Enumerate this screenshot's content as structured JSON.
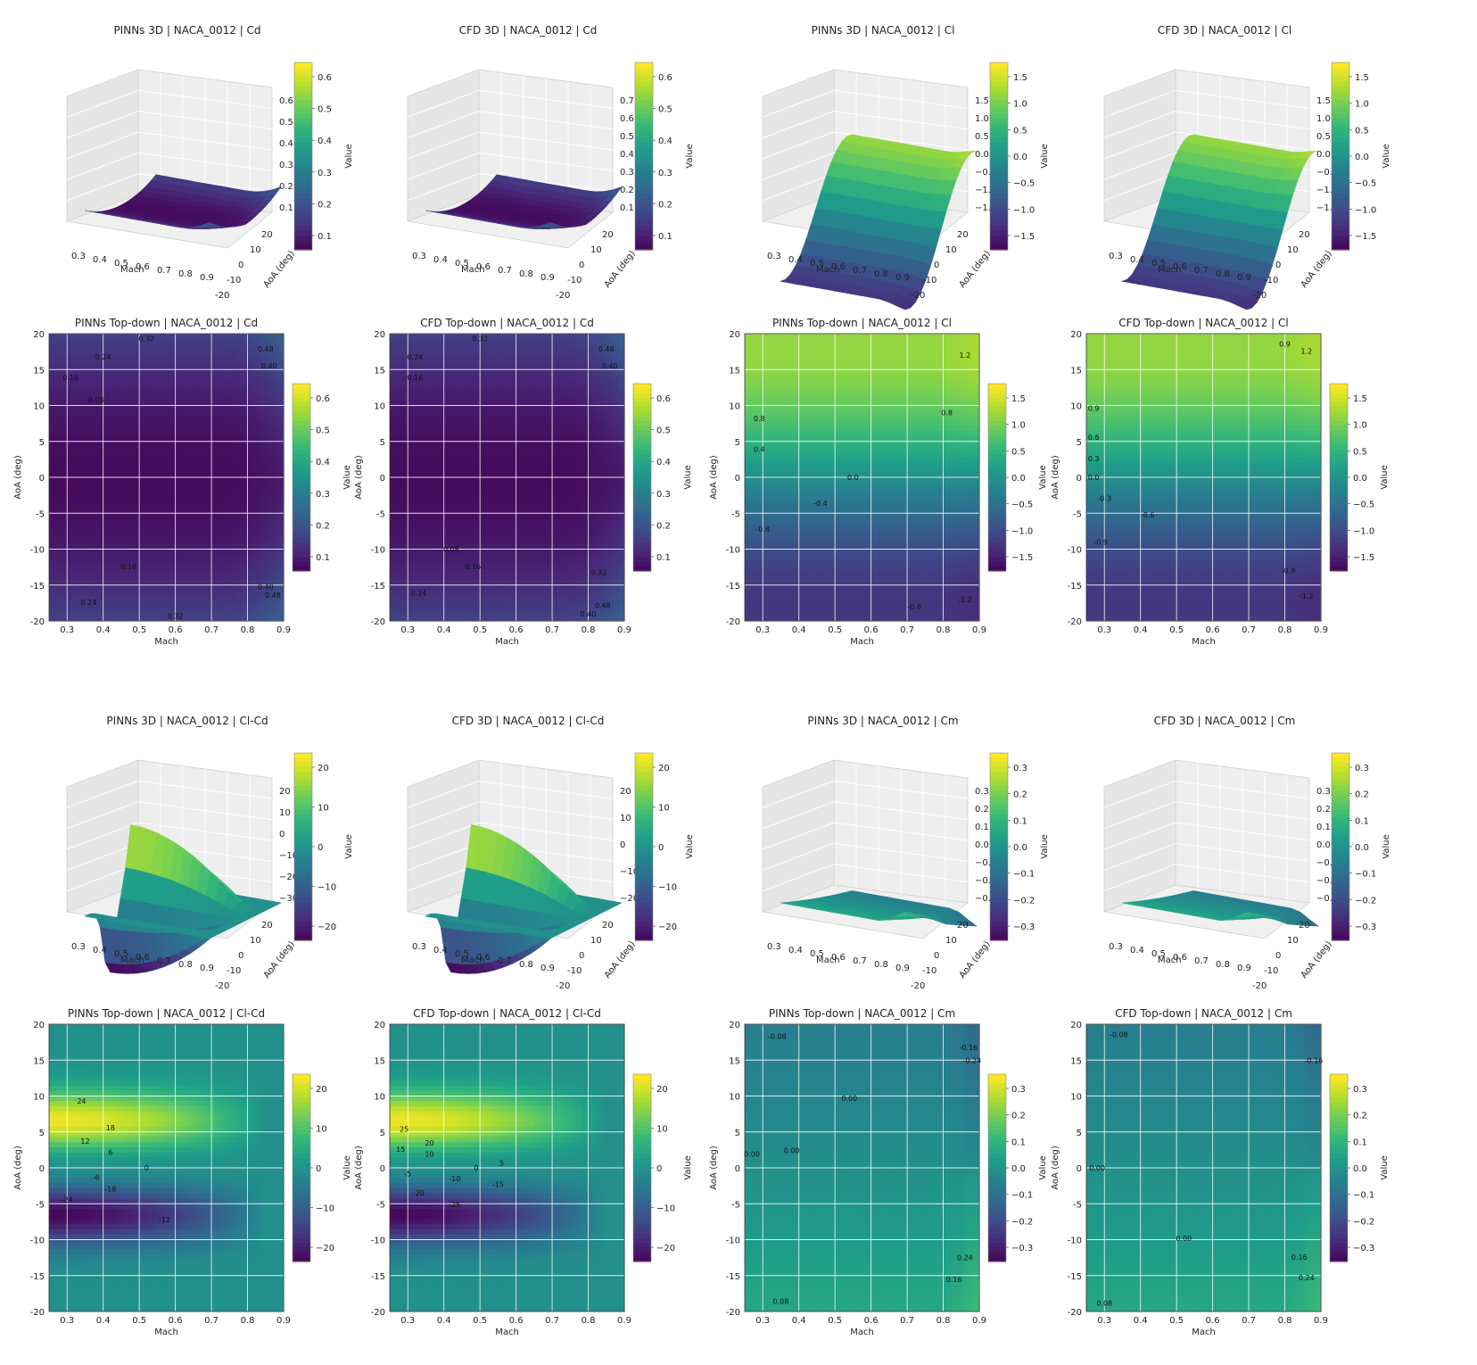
{
  "figure": {
    "axis_label_mach": "Mach",
    "axis_label_aoa": "AoA (deg)",
    "axis_label_aoa_3d": "AoA (deg)",
    "colorbar_label": "Value",
    "x_ticks": [
      "0.3",
      "0.4",
      "0.5",
      "0.6",
      "0.7",
      "0.8",
      "0.9"
    ],
    "y_ticks": [
      "20",
      "15",
      "10",
      "5",
      "0",
      "-5",
      "-10",
      "-15",
      "-20"
    ],
    "aoa_ticks_3d": [
      "20",
      "10",
      "0",
      "-10",
      "-20"
    ]
  },
  "chart_data": [
    {
      "id": "pinns-3d-cd",
      "type": "surface3d",
      "title": "PINNs 3D | NACA_0012 | Cd",
      "colorscale": "viridis",
      "x": {
        "label": "Mach",
        "range": [
          0.25,
          0.9
        ]
      },
      "y": {
        "label": "AoA (deg)",
        "range": [
          -20,
          20
        ]
      },
      "z_ticks": [
        "0.6",
        "0.5",
        "0.4",
        "0.3",
        "0.2",
        "0.1"
      ],
      "colorbar_ticks": [
        "0.6",
        "0.5",
        "0.4",
        "0.3",
        "0.2",
        "0.1"
      ]
    },
    {
      "id": "cfd-3d-cd",
      "type": "surface3d",
      "title": "CFD 3D | NACA_0012 | Cd",
      "colorscale": "viridis",
      "x": {
        "label": "Mach",
        "range": [
          0.25,
          0.9
        ]
      },
      "y": {
        "label": "AoA (deg)",
        "range": [
          -20,
          20
        ]
      },
      "z_ticks": [
        "0.7",
        "0.6",
        "0.5",
        "0.4",
        "0.3",
        "0.2",
        "0.1"
      ],
      "colorbar_ticks": [
        "0.6",
        "0.5",
        "0.4",
        "0.3",
        "0.2",
        "0.1"
      ]
    },
    {
      "id": "pinns-3d-cl",
      "type": "surface3d",
      "title": "PINNs 3D | NACA_0012 | Cl",
      "colorscale": "viridis",
      "x": {
        "label": "Mach",
        "range": [
          0.25,
          0.9
        ]
      },
      "y": {
        "label": "AoA (deg)",
        "range": [
          -20,
          20
        ]
      },
      "z_ticks": [
        "1.5",
        "1.0",
        "0.5",
        "0.0",
        "−0.5",
        "−1.0",
        "−1.5"
      ],
      "colorbar_ticks": [
        "1.5",
        "1.0",
        "0.5",
        "0.0",
        "−0.5",
        "−1.0",
        "−1.5"
      ]
    },
    {
      "id": "cfd-3d-cl",
      "type": "surface3d",
      "title": "CFD 3D | NACA_0012 | Cl",
      "colorscale": "viridis",
      "x": {
        "label": "Mach",
        "range": [
          0.25,
          0.9
        ]
      },
      "y": {
        "label": "AoA (deg)",
        "range": [
          -20,
          20
        ]
      },
      "z_ticks": [
        "1.5",
        "1.0",
        "0.5",
        "0.0",
        "−0.5",
        "−1.0",
        "−1.5"
      ],
      "colorbar_ticks": [
        "1.5",
        "1.0",
        "0.5",
        "0.0",
        "−0.5",
        "−1.0",
        "−1.5"
      ]
    },
    {
      "id": "pinns-top-cd",
      "type": "heatmap",
      "title": "PINNs Top-down | NACA_0012 | Cd",
      "field": "cd",
      "colorscale": "viridis",
      "vmin": 0.0,
      "vmax": 0.68,
      "x": {
        "label": "Mach",
        "range": [
          0.25,
          0.9
        ]
      },
      "y": {
        "label": "AoA (deg)",
        "range": [
          -20,
          20
        ]
      },
      "colorbar_ticks": [
        "0.6",
        "0.5",
        "0.4",
        "0.3",
        "0.2",
        "0.1"
      ],
      "contour_labels": [
        {
          "text": "0.32",
          "x": 0.52,
          "y": 19.3
        },
        {
          "text": "0.24",
          "x": 0.4,
          "y": 16.8
        },
        {
          "text": "0.16",
          "x": 0.31,
          "y": 13.9
        },
        {
          "text": "0.08",
          "x": 0.38,
          "y": 10.8
        },
        {
          "text": "0.48",
          "x": 0.85,
          "y": 17.9
        },
        {
          "text": "0.40",
          "x": 0.86,
          "y": 15.5
        },
        {
          "text": "0.16",
          "x": 0.47,
          "y": -12.4
        },
        {
          "text": "0.24",
          "x": 0.36,
          "y": -17.4
        },
        {
          "text": "0.32",
          "x": 0.6,
          "y": -19.3
        },
        {
          "text": "0.40",
          "x": 0.85,
          "y": -15.2
        },
        {
          "text": "0.48",
          "x": 0.87,
          "y": -16.4
        }
      ]
    },
    {
      "id": "cfd-top-cd",
      "type": "heatmap",
      "title": "CFD Top-down | NACA_0012 | Cd",
      "field": "cd",
      "colorscale": "viridis",
      "vmin": 0.0,
      "vmax": 0.68,
      "x": {
        "label": "Mach",
        "range": [
          0.25,
          0.9
        ]
      },
      "y": {
        "label": "AoA (deg)",
        "range": [
          -20,
          20
        ]
      },
      "colorbar_ticks": [
        "0.6",
        "0.5",
        "0.4",
        "0.3",
        "0.2",
        "0.1"
      ],
      "contour_labels": [
        {
          "text": "0.32",
          "x": 0.5,
          "y": 19.3
        },
        {
          "text": "0.24",
          "x": 0.32,
          "y": 16.8
        },
        {
          "text": "0.16",
          "x": 0.32,
          "y": 13.9
        },
        {
          "text": "0.48",
          "x": 0.85,
          "y": 17.9
        },
        {
          "text": "0.40",
          "x": 0.86,
          "y": 15.5
        },
        {
          "text": "0.08",
          "x": 0.42,
          "y": -10.0
        },
        {
          "text": "0.16",
          "x": 0.48,
          "y": -12.4
        },
        {
          "text": "0.24",
          "x": 0.33,
          "y": -16.1
        },
        {
          "text": "0.32",
          "x": 0.83,
          "y": -13.2
        },
        {
          "text": "0.40",
          "x": 0.8,
          "y": -19.0
        },
        {
          "text": "0.48",
          "x": 0.84,
          "y": -17.8
        }
      ]
    },
    {
      "id": "pinns-top-cl",
      "type": "heatmap",
      "title": "PINNs Top-down | NACA_0012 | Cl",
      "field": "cl",
      "colorscale": "viridis",
      "vmin": -1.7,
      "vmax": 1.7,
      "x": {
        "label": "Mach",
        "range": [
          0.25,
          0.9
        ]
      },
      "y": {
        "label": "AoA (deg)",
        "range": [
          -20,
          20
        ]
      },
      "colorbar_ticks": [
        "1.5",
        "1.0",
        "0.5",
        "0.0",
        "−0.5",
        "−1.0",
        "−1.5"
      ],
      "contour_labels": [
        {
          "text": "0.8",
          "x": 0.29,
          "y": 8.2
        },
        {
          "text": "0.4",
          "x": 0.29,
          "y": 3.9
        },
        {
          "text": "0.0",
          "x": 0.55,
          "y": 0.0
        },
        {
          "text": "-0.4",
          "x": 0.46,
          "y": -3.6
        },
        {
          "text": "-0.8",
          "x": 0.3,
          "y": -7.2
        },
        {
          "text": "0.8",
          "x": 0.81,
          "y": 9.0
        },
        {
          "text": "1.2",
          "x": 0.86,
          "y": 17.0
        },
        {
          "text": "-0.8",
          "x": 0.72,
          "y": -18.0
        },
        {
          "text": "-1.2",
          "x": 0.86,
          "y": -17.0
        }
      ]
    },
    {
      "id": "cfd-top-cl",
      "type": "heatmap",
      "title": "CFD Top-down | NACA_0012 | Cl",
      "field": "cl",
      "colorscale": "viridis",
      "vmin": -1.7,
      "vmax": 1.7,
      "x": {
        "label": "Mach",
        "range": [
          0.25,
          0.9
        ]
      },
      "y": {
        "label": "AoA (deg)",
        "range": [
          -20,
          20
        ]
      },
      "colorbar_ticks": [
        "1.5",
        "1.0",
        "0.5",
        "0.0",
        "−0.5",
        "−1.0",
        "−1.5"
      ],
      "contour_labels": [
        {
          "text": "0.9",
          "x": 0.27,
          "y": 9.6
        },
        {
          "text": "0.6",
          "x": 0.27,
          "y": 5.6
        },
        {
          "text": "0.3",
          "x": 0.27,
          "y": 2.6
        },
        {
          "text": "0.0",
          "x": 0.27,
          "y": 0.0
        },
        {
          "text": "-0.3",
          "x": 0.3,
          "y": -2.9
        },
        {
          "text": "-0.6",
          "x": 0.42,
          "y": -5.2
        },
        {
          "text": "-0.9",
          "x": 0.29,
          "y": -9.0
        },
        {
          "text": "0.9",
          "x": 0.8,
          "y": 18.6
        },
        {
          "text": "1.2",
          "x": 0.86,
          "y": 17.6
        },
        {
          "text": "-0.9",
          "x": 0.81,
          "y": -13.0
        },
        {
          "text": "-1.2",
          "x": 0.86,
          "y": -16.5
        }
      ]
    },
    {
      "id": "pinns-3d-clcd",
      "type": "surface3d",
      "title": "PINNs 3D | NACA_0012 | Cl-Cd",
      "colorscale": "viridis",
      "x": {
        "label": "Mach",
        "range": [
          0.25,
          0.9
        ]
      },
      "y": {
        "label": "AoA (deg)",
        "range": [
          -20,
          20
        ]
      },
      "z_ticks": [
        "20",
        "10",
        "0",
        "−10",
        "−20",
        "−30"
      ],
      "colorbar_ticks": [
        "20",
        "10",
        "0",
        "−10",
        "−20"
      ]
    },
    {
      "id": "cfd-3d-clcd",
      "type": "surface3d",
      "title": "CFD 3D | NACA_0012 | Cl-Cd",
      "colorscale": "viridis",
      "x": {
        "label": "Mach",
        "range": [
          0.25,
          0.9
        ]
      },
      "y": {
        "label": "AoA (deg)",
        "range": [
          -20,
          20
        ]
      },
      "z_ticks": [
        "20",
        "10",
        "0",
        "−10",
        "−20"
      ],
      "colorbar_ticks": [
        "20",
        "10",
        "0",
        "−10",
        "−20"
      ]
    },
    {
      "id": "pinns-3d-cm",
      "type": "surface3d",
      "title": "PINNs 3D | NACA_0012 | Cm",
      "colorscale": "viridis",
      "x": {
        "label": "Mach",
        "range": [
          0.25,
          0.9
        ]
      },
      "y": {
        "label": "AoA (deg)",
        "range": [
          -20,
          20
        ]
      },
      "z_ticks": [
        "0.3",
        "0.2",
        "0.1",
        "0.0",
        "−0.1",
        "−0.2",
        "−0.3"
      ],
      "colorbar_ticks": [
        "0.3",
        "0.2",
        "0.1",
        "0.0",
        "−0.1",
        "−0.2",
        "−0.3"
      ]
    },
    {
      "id": "cfd-3d-cm",
      "type": "surface3d",
      "title": "CFD 3D | NACA_0012 | Cm",
      "colorscale": "viridis",
      "x": {
        "label": "Mach",
        "range": [
          0.25,
          0.9
        ]
      },
      "y": {
        "label": "AoA (deg)",
        "range": [
          -20,
          20
        ]
      },
      "z_ticks": [
        "0.3",
        "0.2",
        "0.1",
        "0.0",
        "−0.1",
        "−0.2",
        "−0.3"
      ],
      "colorbar_ticks": [
        "0.3",
        "0.2",
        "0.1",
        "0.0",
        "−0.1",
        "−0.2",
        "−0.3"
      ]
    },
    {
      "id": "pinns-top-clcd",
      "type": "heatmap",
      "title": "PINNs Top-down | NACA_0012 | Cl-Cd",
      "field": "clcd",
      "colorscale": "viridis",
      "vmin": -28,
      "vmax": 28,
      "x": {
        "label": "Mach",
        "range": [
          0.25,
          0.9
        ]
      },
      "y": {
        "label": "AoA (deg)",
        "range": [
          -20,
          20
        ]
      },
      "colorbar_ticks": [
        "20",
        "10",
        "0",
        "−10",
        "−20"
      ],
      "contour_labels": [
        {
          "text": "24",
          "x": 0.34,
          "y": 9.3
        },
        {
          "text": "18",
          "x": 0.42,
          "y": 5.6
        },
        {
          "text": "12",
          "x": 0.35,
          "y": 3.7
        },
        {
          "text": "6",
          "x": 0.42,
          "y": 2.2
        },
        {
          "text": "0",
          "x": 0.52,
          "y": 0.0
        },
        {
          "text": "-6",
          "x": 0.38,
          "y": -1.3
        },
        {
          "text": "-18",
          "x": 0.42,
          "y": -2.9
        },
        {
          "text": "-24",
          "x": 0.3,
          "y": -4.4
        },
        {
          "text": "-12",
          "x": 0.57,
          "y": -7.2
        }
      ]
    },
    {
      "id": "cfd-top-clcd",
      "type": "heatmap",
      "title": "CFD Top-down | NACA_0012 | Cl-Cd",
      "field": "clcd",
      "colorscale": "viridis",
      "vmin": -28,
      "vmax": 28,
      "x": {
        "label": "Mach",
        "range": [
          0.25,
          0.9
        ]
      },
      "y": {
        "label": "AoA (deg)",
        "range": [
          -20,
          20
        ]
      },
      "colorbar_ticks": [
        "20",
        "10",
        "0",
        "−10",
        "−20"
      ],
      "contour_labels": [
        {
          "text": "25",
          "x": 0.29,
          "y": 5.4
        },
        {
          "text": "20",
          "x": 0.36,
          "y": 3.5
        },
        {
          "text": "15",
          "x": 0.28,
          "y": 2.6
        },
        {
          "text": "10",
          "x": 0.36,
          "y": 1.9
        },
        {
          "text": "5",
          "x": 0.56,
          "y": 0.7
        },
        {
          "text": "0",
          "x": 0.49,
          "y": 0.0
        },
        {
          "text": "-5",
          "x": 0.3,
          "y": -0.8
        },
        {
          "text": "-10",
          "x": 0.43,
          "y": -1.5
        },
        {
          "text": "-15",
          "x": 0.55,
          "y": -2.3
        },
        {
          "text": "-20",
          "x": 0.33,
          "y": -3.5
        },
        {
          "text": "-25",
          "x": 0.43,
          "y": -5.1
        }
      ]
    },
    {
      "id": "pinns-top-cm",
      "type": "heatmap",
      "title": "PINNs Top-down | NACA_0012 | Cm",
      "field": "cm",
      "colorscale": "viridis",
      "vmin": -0.36,
      "vmax": 0.36,
      "x": {
        "label": "Mach",
        "range": [
          0.25,
          0.9
        ]
      },
      "y": {
        "label": "AoA (deg)",
        "range": [
          -20,
          20
        ]
      },
      "colorbar_ticks": [
        "0.3",
        "0.2",
        "0.1",
        "0.0",
        "−0.1",
        "−0.2",
        "−0.3"
      ],
      "contour_labels": [
        {
          "text": "-0.08",
          "x": 0.34,
          "y": 18.3
        },
        {
          "text": "0.00",
          "x": 0.54,
          "y": 9.7
        },
        {
          "text": "0.00",
          "x": 0.27,
          "y": 1.9
        },
        {
          "text": "0.00",
          "x": 0.38,
          "y": 2.4
        },
        {
          "text": "-0.16",
          "x": 0.87,
          "y": 16.8
        },
        {
          "text": "-0.24",
          "x": 0.88,
          "y": 15.0
        },
        {
          "text": "0.08",
          "x": 0.35,
          "y": -18.6
        },
        {
          "text": "0.16",
          "x": 0.83,
          "y": -15.5
        },
        {
          "text": "0.24",
          "x": 0.86,
          "y": -12.5
        }
      ]
    },
    {
      "id": "cfd-top-cm",
      "type": "heatmap",
      "title": "CFD Top-down | NACA_0012 | Cm",
      "field": "cm",
      "colorscale": "viridis",
      "vmin": -0.36,
      "vmax": 0.36,
      "x": {
        "label": "Mach",
        "range": [
          0.25,
          0.9
        ]
      },
      "y": {
        "label": "AoA (deg)",
        "range": [
          -20,
          20
        ]
      },
      "colorbar_ticks": [
        "0.3",
        "0.2",
        "0.1",
        "0.0",
        "−0.1",
        "−0.2",
        "−0.3"
      ],
      "contour_labels": [
        {
          "text": "-0.08",
          "x": 0.34,
          "y": 18.6
        },
        {
          "text": "0.00",
          "x": 0.28,
          "y": 0.0
        },
        {
          "text": "-0.16",
          "x": 0.88,
          "y": 15.0
        },
        {
          "text": "0.00",
          "x": 0.52,
          "y": -9.8
        },
        {
          "text": "0.08",
          "x": 0.3,
          "y": -18.8
        },
        {
          "text": "0.16",
          "x": 0.84,
          "y": -12.4
        },
        {
          "text": "0.24",
          "x": 0.86,
          "y": -15.3
        }
      ]
    }
  ]
}
